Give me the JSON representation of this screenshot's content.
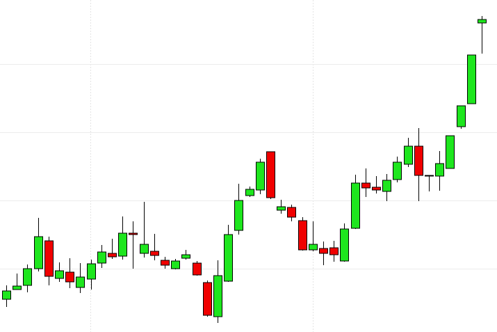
{
  "chart_data": {
    "type": "candlestick",
    "categories": [
      null,
      null,
      null,
      null,
      null,
      null,
      null,
      null,
      null,
      null,
      null,
      null,
      null,
      null,
      null,
      null,
      null,
      null,
      null,
      null,
      null,
      null,
      null,
      null,
      null,
      null,
      null,
      null,
      null,
      null,
      null,
      null,
      null,
      null,
      null,
      null,
      null,
      null,
      null,
      null,
      null,
      null,
      null,
      null,
      null,
      null
    ],
    "open": [
      47,
      61,
      67,
      91,
      131,
      77,
      86,
      64,
      76,
      99,
      113,
      109,
      142,
      113,
      116,
      103,
      91,
      106,
      99,
      71,
      22,
      73,
      146,
      196,
      204,
      259,
      175,
      179,
      160,
      118,
      120,
      121,
      102,
      149,
      214,
      208,
      202,
      219,
      241,
      267,
      225,
      224,
      235,
      295,
      328,
      444
    ],
    "high": [
      67,
      84,
      97,
      164,
      137,
      100,
      106,
      99,
      104,
      125,
      134,
      166,
      159,
      187,
      141,
      108,
      105,
      118,
      102,
      74,
      103,
      154,
      213,
      209,
      249,
      259,
      190,
      183,
      165,
      159,
      130,
      131,
      156,
      226,
      235,
      224,
      227,
      252,
      279,
      293,
      225,
      260,
      282,
      325,
      398,
      454
    ],
    "low": [
      36,
      61,
      57,
      87,
      67,
      72,
      63,
      56,
      61,
      92,
      105,
      104,
      91,
      107,
      103,
      91,
      90,
      104,
      81,
      22,
      13,
      72,
      140,
      194,
      198,
      191,
      170,
      159,
      117,
      116,
      96,
      101,
      101,
      148,
      194,
      199,
      188,
      215,
      237,
      188,
      202,
      203,
      235,
      292,
      328,
      400
    ],
    "close": [
      59,
      66,
      91,
      137,
      80,
      88,
      72,
      79,
      98,
      115,
      108,
      142,
      140,
      126,
      110,
      96,
      102,
      111,
      82,
      24,
      81,
      140,
      189,
      205,
      244,
      193,
      180,
      165,
      118,
      126,
      113,
      111,
      148,
      214,
      207,
      204,
      218,
      244,
      267,
      225,
      224,
      242,
      282,
      325,
      398,
      449
    ],
    "up_color": "#1ee61e",
    "down_color": "#f00000",
    "ylim": [
      0,
      477
    ],
    "yticks": [
      91,
      189,
      287,
      385
    ],
    "grid": true
  }
}
